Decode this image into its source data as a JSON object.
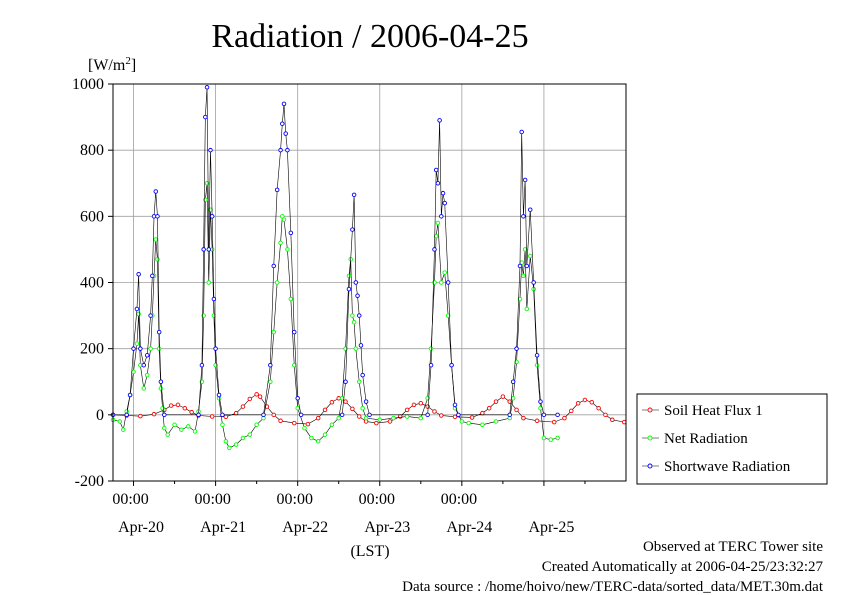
{
  "chart_data": {
    "type": "line",
    "title": "Radiation / 2006-04-25",
    "ylabel_unit_prefix": "[W/m",
    "ylabel_unit_sup": "2",
    "ylabel_unit_suffix": "]",
    "xlabel": "(LST)",
    "ylim": [
      -200,
      1000
    ],
    "yticks": [
      -200,
      0,
      200,
      400,
      600,
      800,
      1000
    ],
    "x_range_days": [
      "Apr-19 18:00",
      "Apr-25 24:00"
    ],
    "time_ticks": [
      "00:00",
      "00:00",
      "00:00",
      "00:00",
      "00:00"
    ],
    "date_ticks": [
      "Apr-20",
      "Apr-21",
      "Apr-22",
      "Apr-23",
      "Apr-24",
      "Apr-25"
    ],
    "grid": true,
    "legend_position": "right",
    "series": [
      {
        "name": "Soil Heat Flux 1",
        "color": "#ff0000",
        "marker": "circle",
        "points": [
          [
            "19 18:00",
            0
          ],
          [
            "19 22:00",
            -2
          ],
          [
            "20 02:00",
            -4
          ],
          [
            "20 06:00",
            2
          ],
          [
            "20 09:00",
            15
          ],
          [
            "20 11:00",
            28
          ],
          [
            "20 13:00",
            30
          ],
          [
            "20 15:00",
            20
          ],
          [
            "20 17:00",
            8
          ],
          [
            "20 19:00",
            -2
          ],
          [
            "20 23:00",
            -5
          ],
          [
            "21 03:00",
            -6
          ],
          [
            "21 06:00",
            5
          ],
          [
            "21 08:00",
            25
          ],
          [
            "21 10:00",
            48
          ],
          [
            "21 12:00",
            62
          ],
          [
            "21 13:00",
            55
          ],
          [
            "21 15:00",
            25
          ],
          [
            "21 17:00",
            0
          ],
          [
            "21 19:00",
            -18
          ],
          [
            "21 23:00",
            -25
          ],
          [
            "22 03:00",
            -28
          ],
          [
            "22 06:00",
            -10
          ],
          [
            "22 08:00",
            15
          ],
          [
            "22 10:00",
            38
          ],
          [
            "22 12:00",
            50
          ],
          [
            "22 14:00",
            40
          ],
          [
            "22 16:00",
            18
          ],
          [
            "22 18:00",
            -5
          ],
          [
            "22 20:00",
            -20
          ],
          [
            "22 23:00",
            -25
          ],
          [
            "23 03:00",
            -20
          ],
          [
            "23 06:00",
            -5
          ],
          [
            "23 08:00",
            15
          ],
          [
            "23 10:00",
            30
          ],
          [
            "23 12:00",
            35
          ],
          [
            "23 14:00",
            25
          ],
          [
            "23 16:00",
            10
          ],
          [
            "23 18:00",
            -2
          ],
          [
            "23 22:00",
            -6
          ],
          [
            "24 03:00",
            -8
          ],
          [
            "24 06:00",
            5
          ],
          [
            "24 08:00",
            20
          ],
          [
            "24 10:00",
            40
          ],
          [
            "24 12:00",
            55
          ],
          [
            "24 14:00",
            40
          ],
          [
            "24 16:00",
            15
          ],
          [
            "24 18:00",
            -10
          ],
          [
            "24 22:00",
            -18
          ],
          [
            "25 03:00",
            -22
          ],
          [
            "25 06:00",
            -10
          ],
          [
            "25 08:00",
            12
          ],
          [
            "25 10:00",
            35
          ],
          [
            "25 12:00",
            45
          ],
          [
            "25 14:00",
            38
          ],
          [
            "25 16:00",
            20
          ],
          [
            "25 18:00",
            0
          ],
          [
            "25 20:00",
            -15
          ],
          [
            "25 23:30",
            -22
          ]
        ]
      },
      {
        "name": "Net Radiation",
        "color": "#00ff00",
        "marker": "circle",
        "points": [
          [
            "19 18:00",
            -15
          ],
          [
            "19 20:00",
            -20
          ],
          [
            "19 21:00",
            -45
          ],
          [
            "19 22:00",
            10
          ],
          [
            "19 23:00",
            60
          ],
          [
            "20 00:00",
            130
          ],
          [
            "20 01:00",
            215
          ],
          [
            "20 01:30",
            305
          ],
          [
            "20 02:00",
            150
          ],
          [
            "20 03:00",
            80
          ],
          [
            "20 04:00",
            120
          ],
          [
            "20 05:00",
            200
          ],
          [
            "20 05:30",
            300
          ],
          [
            "20 06:00",
            420
          ],
          [
            "20 06:30",
            530
          ],
          [
            "20 07:00",
            470
          ],
          [
            "20 07:30",
            200
          ],
          [
            "20 08:00",
            80
          ],
          [
            "20 08:30",
            20
          ],
          [
            "20 09:00",
            -40
          ],
          [
            "20 10:00",
            -60
          ],
          [
            "20 12:00",
            -30
          ],
          [
            "20 14:00",
            -45
          ],
          [
            "20 16:00",
            -35
          ],
          [
            "20 18:00",
            -50
          ],
          [
            "20 19:00",
            10
          ],
          [
            "20 20:00",
            100
          ],
          [
            "20 20:30",
            300
          ],
          [
            "20 21:00",
            650
          ],
          [
            "20 21:30",
            700
          ],
          [
            "20 22:00",
            400
          ],
          [
            "20 22:30",
            620
          ],
          [
            "20 23:00",
            500
          ],
          [
            "20 23:30",
            300
          ],
          [
            "21 00:00",
            150
          ],
          [
            "21 01:00",
            50
          ],
          [
            "21 02:00",
            -30
          ],
          [
            "21 03:00",
            -80
          ],
          [
            "21 04:00",
            -100
          ],
          [
            "21 06:00",
            -90
          ],
          [
            "21 08:00",
            -70
          ],
          [
            "21 10:00",
            -60
          ],
          [
            "21 12:00",
            -30
          ],
          [
            "21 14:00",
            -10
          ],
          [
            "21 16:00",
            100
          ],
          [
            "21 17:00",
            250
          ],
          [
            "21 18:00",
            400
          ],
          [
            "21 19:00",
            520
          ],
          [
            "21 19:30",
            600
          ],
          [
            "21 20:00",
            590
          ],
          [
            "21 21:00",
            500
          ],
          [
            "21 22:00",
            350
          ],
          [
            "21 23:00",
            150
          ],
          [
            "22 00:00",
            20
          ],
          [
            "22 02:00",
            -40
          ],
          [
            "22 04:00",
            -70
          ],
          [
            "22 06:00",
            -80
          ],
          [
            "22 08:00",
            -60
          ],
          [
            "22 10:00",
            -30
          ],
          [
            "22 12:00",
            -10
          ],
          [
            "22 13:00",
            50
          ],
          [
            "22 14:00",
            200
          ],
          [
            "22 15:00",
            420
          ],
          [
            "22 15:30",
            470
          ],
          [
            "22 16:00",
            300
          ],
          [
            "22 16:30",
            280
          ],
          [
            "22 17:00",
            200
          ],
          [
            "22 18:00",
            100
          ],
          [
            "22 19:00",
            20
          ],
          [
            "22 20:00",
            -10
          ],
          [
            "23 00:00",
            -15
          ],
          [
            "23 04:00",
            -10
          ],
          [
            "23 08:00",
            -5
          ],
          [
            "23 12:00",
            -10
          ],
          [
            "23 14:00",
            50
          ],
          [
            "23 15:00",
            200
          ],
          [
            "23 16:00",
            400
          ],
          [
            "23 16:30",
            540
          ],
          [
            "23 17:00",
            580
          ],
          [
            "23 18:00",
            400
          ],
          [
            "23 19:00",
            430
          ],
          [
            "23 20:00",
            300
          ],
          [
            "23 21:00",
            150
          ],
          [
            "23 22:00",
            20
          ],
          [
            "24 00:00",
            -20
          ],
          [
            "24 02:00",
            -25
          ],
          [
            "24 06:00",
            -30
          ],
          [
            "24 10:00",
            -20
          ],
          [
            "24 14:00",
            -10
          ],
          [
            "24 15:00",
            50
          ],
          [
            "24 16:00",
            160
          ],
          [
            "24 17:00",
            350
          ],
          [
            "24 17:30",
            460
          ],
          [
            "24 18:00",
            420
          ],
          [
            "24 18:30",
            500
          ],
          [
            "24 19:00",
            320
          ],
          [
            "24 20:00",
            480
          ],
          [
            "24 21:00",
            380
          ],
          [
            "24 22:00",
            150
          ],
          [
            "24 23:00",
            20
          ],
          [
            "25 00:00",
            -70
          ],
          [
            "25 02:00",
            -75
          ],
          [
            "25 04:00",
            -70
          ]
        ]
      },
      {
        "name": "Shortwave Radiation",
        "color": "#0000ff",
        "marker": "circle",
        "points": [
          [
            "19 18:00",
            0
          ],
          [
            "19 22:00",
            0
          ],
          [
            "19 23:00",
            60
          ],
          [
            "20 00:00",
            200
          ],
          [
            "20 01:00",
            320
          ],
          [
            "20 01:30",
            425
          ],
          [
            "20 02:00",
            200
          ],
          [
            "20 03:00",
            150
          ],
          [
            "20 04:00",
            180
          ],
          [
            "20 05:00",
            300
          ],
          [
            "20 05:30",
            420
          ],
          [
            "20 06:00",
            600
          ],
          [
            "20 06:30",
            675
          ],
          [
            "20 07:00",
            600
          ],
          [
            "20 07:30",
            250
          ],
          [
            "20 08:00",
            100
          ],
          [
            "20 09:00",
            0
          ],
          [
            "20 19:00",
            0
          ],
          [
            "20 20:00",
            150
          ],
          [
            "20 20:30",
            500
          ],
          [
            "20 21:00",
            900
          ],
          [
            "20 21:30",
            990
          ],
          [
            "20 22:00",
            500
          ],
          [
            "20 22:30",
            800
          ],
          [
            "20 23:00",
            600
          ],
          [
            "20 23:30",
            350
          ],
          [
            "21 00:00",
            200
          ],
          [
            "21 01:00",
            60
          ],
          [
            "21 02:00",
            0
          ],
          [
            "21 14:00",
            0
          ],
          [
            "21 16:00",
            150
          ],
          [
            "21 17:00",
            450
          ],
          [
            "21 18:00",
            680
          ],
          [
            "21 19:00",
            800
          ],
          [
            "21 19:30",
            880
          ],
          [
            "21 20:00",
            940
          ],
          [
            "21 20:30",
            850
          ],
          [
            "21 21:00",
            800
          ],
          [
            "21 22:00",
            550
          ],
          [
            "21 23:00",
            250
          ],
          [
            "22 00:00",
            50
          ],
          [
            "22 01:00",
            0
          ],
          [
            "22 13:00",
            0
          ],
          [
            "22 14:00",
            100
          ],
          [
            "22 15:00",
            380
          ],
          [
            "22 16:00",
            560
          ],
          [
            "22 16:30",
            665
          ],
          [
            "22 17:00",
            400
          ],
          [
            "22 17:30",
            360
          ],
          [
            "22 18:00",
            300
          ],
          [
            "22 18:30",
            210
          ],
          [
            "22 19:00",
            120
          ],
          [
            "22 20:00",
            40
          ],
          [
            "22 21:00",
            0
          ],
          [
            "23 14:00",
            0
          ],
          [
            "23 15:00",
            150
          ],
          [
            "23 16:00",
            500
          ],
          [
            "23 16:30",
            740
          ],
          [
            "23 17:00",
            700
          ],
          [
            "23 17:30",
            890
          ],
          [
            "23 18:00",
            600
          ],
          [
            "23 18:30",
            670
          ],
          [
            "23 19:00",
            640
          ],
          [
            "23 20:00",
            400
          ],
          [
            "23 21:00",
            150
          ],
          [
            "23 22:00",
            30
          ],
          [
            "23 23:00",
            0
          ],
          [
            "24 14:00",
            0
          ],
          [
            "24 15:00",
            100
          ],
          [
            "24 16:00",
            200
          ],
          [
            "24 17:00",
            450
          ],
          [
            "24 17:30",
            855
          ],
          [
            "24 18:00",
            600
          ],
          [
            "24 18:30",
            710
          ],
          [
            "24 19:00",
            450
          ],
          [
            "24 20:00",
            620
          ],
          [
            "24 21:00",
            400
          ],
          [
            "24 22:00",
            180
          ],
          [
            "24 23:00",
            40
          ],
          [
            "25 00:00",
            0
          ],
          [
            "25 04:00",
            0
          ]
        ]
      }
    ]
  },
  "footer": {
    "line1": "Observed at TERC Tower site",
    "line2": "Created Automatically at 2006-04-25/23:32:27",
    "line3": "Data source : /home/hoivo/new/TERC-data/sorted_data/MET.30m.dat"
  }
}
